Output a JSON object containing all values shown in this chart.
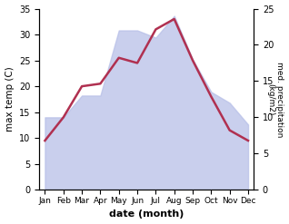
{
  "months": [
    "Jan",
    "Feb",
    "Mar",
    "Apr",
    "May",
    "Jun",
    "Jul",
    "Aug",
    "Sep",
    "Oct",
    "Nov",
    "Dec"
  ],
  "month_positions": [
    0,
    1,
    2,
    3,
    4,
    5,
    6,
    7,
    8,
    9,
    10,
    11
  ],
  "max_temp": [
    9.5,
    14.0,
    20.0,
    20.5,
    25.5,
    24.5,
    31.0,
    33.0,
    25.0,
    18.0,
    11.5,
    9.5
  ],
  "precipitation": [
    10.0,
    10.0,
    13.0,
    13.0,
    22.0,
    22.0,
    21.0,
    24.0,
    18.0,
    13.5,
    12.0,
    9.0
  ],
  "temp_ylim": [
    0,
    35
  ],
  "precip_ylim": [
    0,
    25
  ],
  "temp_yticks": [
    0,
    5,
    10,
    15,
    20,
    25,
    30,
    35
  ],
  "precip_yticks": [
    0,
    5,
    10,
    15,
    20,
    25
  ],
  "fill_color": "#b8c0e8",
  "fill_alpha": 0.75,
  "line_color": "#b03050",
  "line_width": 1.8,
  "xlabel": "date (month)",
  "ylabel_left": "max temp (C)",
  "ylabel_right": "med. precipitation\n(kg/m2)",
  "bg_color": "#ffffff"
}
